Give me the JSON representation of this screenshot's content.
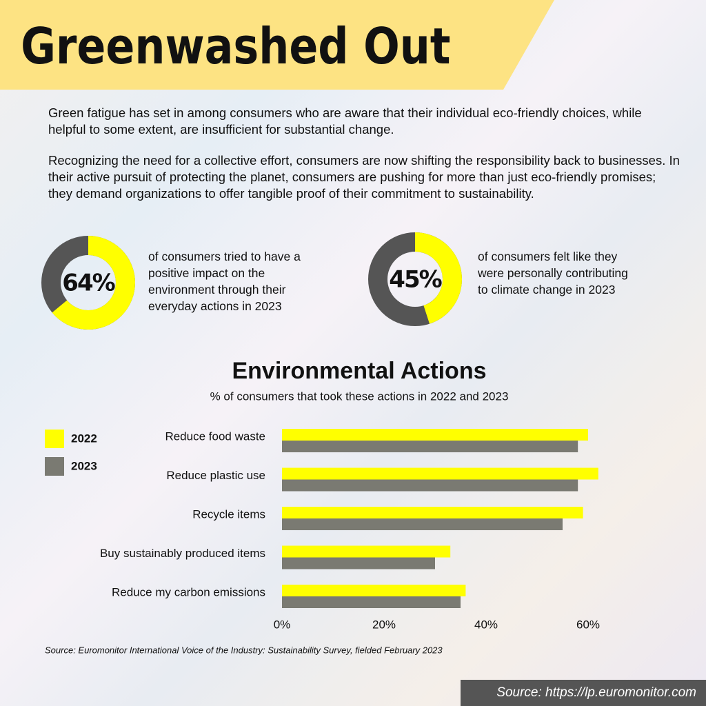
{
  "header": {
    "title": "Greenwashed Out"
  },
  "intro": {
    "paragraphs": [
      "Green fatigue has set in among consumers who are aware that their individual eco-friendly choices, while helpful to some extent, are insufficient for substantial change.",
      "Recognizing the need for a collective effort, consumers are now shifting the responsibility back to businesses. In their active pursuit of protecting the planet, consumers are pushing for more than just eco-friendly promises; they demand organizations to offer tangible proof of their commitment to sustainability."
    ]
  },
  "chart_data": [
    {
      "type": "donut",
      "values": [
        64
      ],
      "value_labels": [
        "64%"
      ],
      "color": "#ffff00",
      "track_color": "#555555",
      "caption": "of consumers tried to have a positive impact on the environment through their everyday actions in 2023"
    },
    {
      "type": "donut",
      "values": [
        45
      ],
      "value_labels": [
        "45%"
      ],
      "color": "#ffff00",
      "track_color": "#555555",
      "caption": "of consumers felt like they were personally contributing to climate change in 2023"
    },
    {
      "type": "hbar",
      "title": "Environmental Actions",
      "subtitle": "% of consumers that took these actions in 2022 and 2023",
      "categories": [
        "Reduce food waste",
        "Reduce plastic use",
        "Recycle items",
        "Buy sustainably produced items",
        "Reduce my carbon emissions"
      ],
      "series": [
        {
          "name": "2022",
          "color": "#ffff00",
          "values": [
            60,
            62,
            59,
            33,
            36
          ]
        },
        {
          "name": "2023",
          "color": "#7a7a72",
          "values": [
            58,
            58,
            55,
            30,
            35
          ]
        }
      ],
      "xlim": [
        0,
        70
      ],
      "xticks": [
        {
          "value": 0,
          "label": "0%"
        },
        {
          "value": 20,
          "label": "20%"
        },
        {
          "value": 40,
          "label": "40%"
        },
        {
          "value": 60,
          "label": "60%"
        }
      ],
      "grid": false,
      "legend": "left",
      "source": "Source: Euromonitor International Voice of the Industry: Sustainability Survey, fielded February 2023"
    }
  ],
  "footer": {
    "source": "Source: https://lp.euromonitor.com"
  }
}
